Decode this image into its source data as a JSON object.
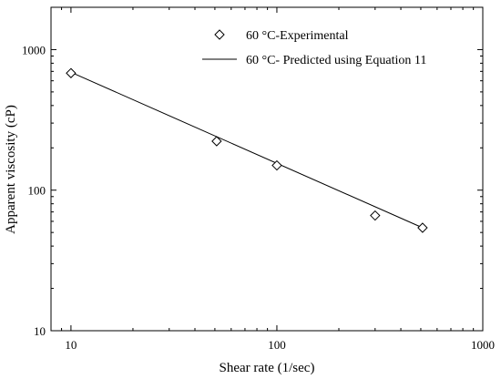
{
  "chart_data": {
    "type": "scatter",
    "xscale": "log",
    "yscale": "log",
    "xlim": [
      8,
      1000
    ],
    "ylim": [
      10,
      2000
    ],
    "xlabel": "Shear rate (1/sec)",
    "ylabel": "Apparent viscosity (cP)",
    "x_ticks": [
      10,
      100,
      1000
    ],
    "x_tick_labels": [
      "10",
      "100",
      "1000"
    ],
    "y_ticks": [
      10,
      100,
      1000
    ],
    "y_tick_labels": [
      "10",
      "100",
      "1000"
    ],
    "legend_position": "top-right",
    "series": [
      {
        "name": "60 °C-Experimental",
        "marker": "diamond-open",
        "x": [
          10,
          51,
          100,
          300,
          510
        ],
        "y": [
          680,
          223,
          150,
          66,
          54
        ]
      },
      {
        "name": "60 °C- Predicted using Equation 11",
        "style": "line",
        "x": [
          10,
          510
        ],
        "y": [
          690,
          54
        ]
      }
    ]
  }
}
